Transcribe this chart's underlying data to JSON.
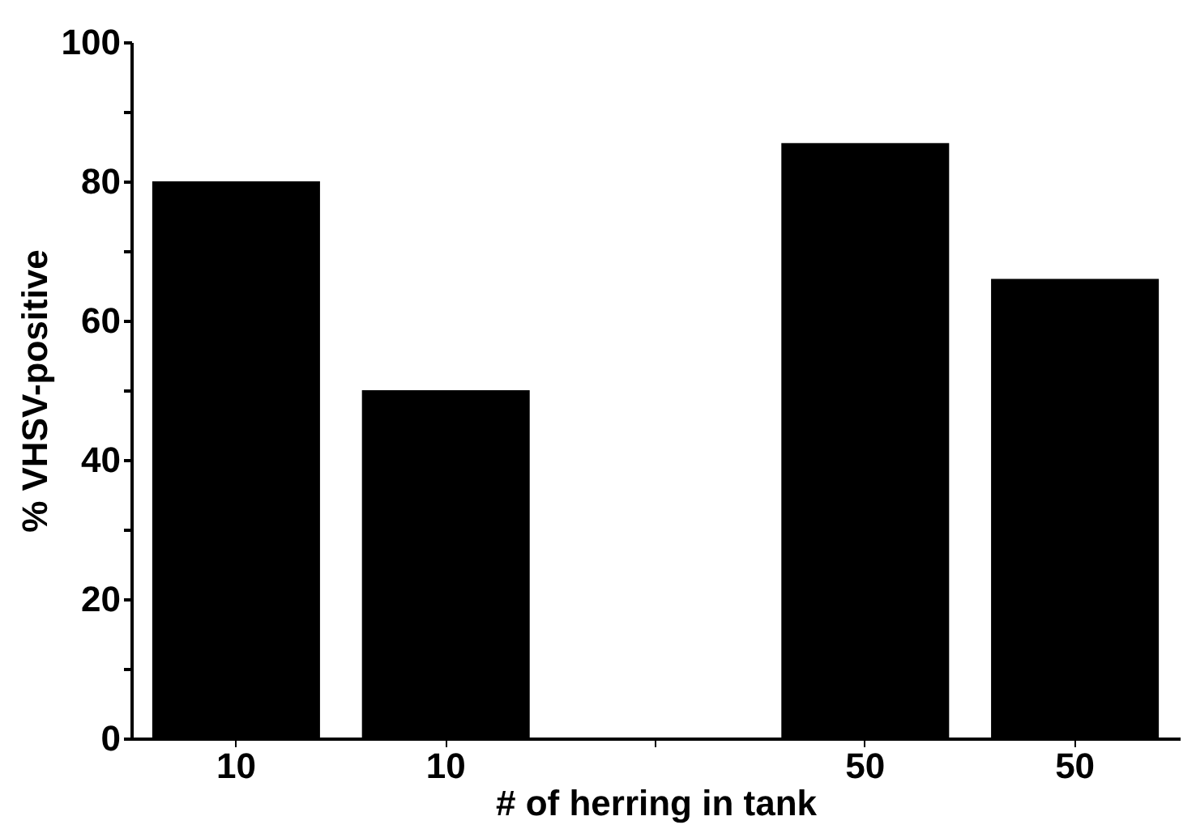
{
  "chart_data": {
    "type": "bar",
    "xlabel": "# of herring in tank",
    "ylabel": "% VHSV-positive",
    "categories": [
      "10",
      "10",
      null,
      "50",
      "50"
    ],
    "values": [
      80,
      50,
      null,
      85.5,
      66
    ],
    "color": "#000000",
    "ylim": [
      0,
      100
    ],
    "yticks": [
      0,
      {
        "value": 10,
        "label": null
      },
      20,
      {
        "value": 30,
        "label": null
      },
      40,
      {
        "value": 50,
        "label": null
      },
      60,
      {
        "value": 70,
        "label": null
      },
      80,
      {
        "value": 90,
        "label": null
      },
      100
    ],
    "grid": false
  }
}
